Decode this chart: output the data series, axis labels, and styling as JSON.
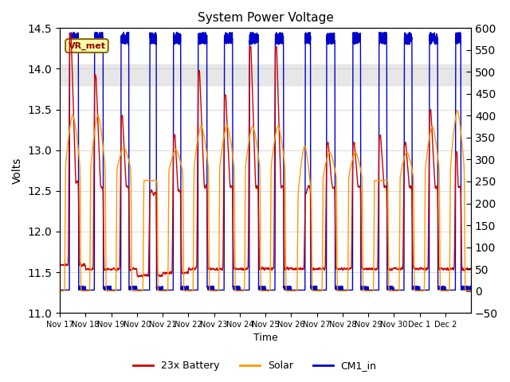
{
  "title": "System Power Voltage",
  "ylabel_left": "Volts",
  "xlabel": "Time",
  "ylim_left": [
    11.0,
    14.5
  ],
  "ylim_right": [
    -50,
    600
  ],
  "yticks_left": [
    11.0,
    11.5,
    12.0,
    12.5,
    13.0,
    13.5,
    14.0,
    14.5
  ],
  "yticks_right": [
    -50,
    0,
    50,
    100,
    150,
    200,
    250,
    300,
    350,
    400,
    450,
    500,
    550,
    600
  ],
  "shaded_band": [
    13.8,
    14.05
  ],
  "annotation_text": "VR_met",
  "colors": {
    "battery": "#cc0000",
    "solar": "#ff9900",
    "cm1": "#0000cc",
    "shading": "#d8d8d8"
  },
  "xtick_labels": [
    "Nov 17",
    "Nov 18",
    "Nov 19",
    "Nov 20",
    "Nov 21",
    "Nov 22",
    "Nov 23",
    "Nov 24",
    "Nov 25",
    "Nov 26",
    "Nov 27",
    "Nov 28",
    "Nov 29",
    "Nov 30",
    "Dec 1",
    "Dec 2"
  ],
  "num_days": 16,
  "pts_per_day": 288,
  "day_profiles": {
    "cm1_on_start": [
      0.38,
      0.35,
      0.38,
      0.5,
      0.42,
      0.38,
      0.4,
      0.38,
      0.38,
      0.55,
      0.38,
      0.4,
      0.42,
      0.4,
      0.38,
      0.4
    ],
    "cm1_on_end": [
      0.72,
      0.68,
      0.68,
      0.75,
      0.7,
      0.72,
      0.72,
      0.72,
      0.7,
      0.75,
      0.7,
      0.7,
      0.72,
      0.7,
      0.7,
      0.6
    ],
    "cm1_peak": [
      580,
      580,
      580,
      580,
      580,
      580,
      580,
      580,
      580,
      580,
      580,
      580,
      580,
      580,
      580,
      580
    ],
    "bat_night": [
      11.55,
      11.5,
      11.5,
      11.42,
      11.45,
      11.5,
      11.5,
      11.5,
      11.5,
      11.5,
      11.5,
      11.5,
      11.5,
      11.5,
      11.5,
      11.5
    ],
    "bat_peak": [
      14.45,
      13.95,
      13.45,
      12.5,
      13.2,
      14.0,
      13.7,
      14.3,
      14.3,
      12.5,
      13.1,
      13.1,
      13.2,
      13.1,
      13.5,
      13.0
    ],
    "sol_base": [
      270,
      265,
      270,
      250,
      265,
      270,
      270,
      270,
      270,
      205,
      250,
      250,
      250,
      250,
      265,
      265
    ],
    "sol_peak": [
      400,
      400,
      325,
      250,
      320,
      375,
      375,
      375,
      375,
      330,
      315,
      315,
      250,
      315,
      375,
      410
    ],
    "sol_on_start": [
      0.2,
      0.18,
      0.2,
      0.25,
      0.22,
      0.2,
      0.2,
      0.2,
      0.2,
      0.25,
      0.22,
      0.22,
      0.22,
      0.22,
      0.2,
      0.18
    ],
    "sol_on_end": [
      0.8,
      0.78,
      0.78,
      0.8,
      0.8,
      0.8,
      0.8,
      0.8,
      0.78,
      0.8,
      0.78,
      0.78,
      0.78,
      0.78,
      0.78,
      0.75
    ]
  }
}
